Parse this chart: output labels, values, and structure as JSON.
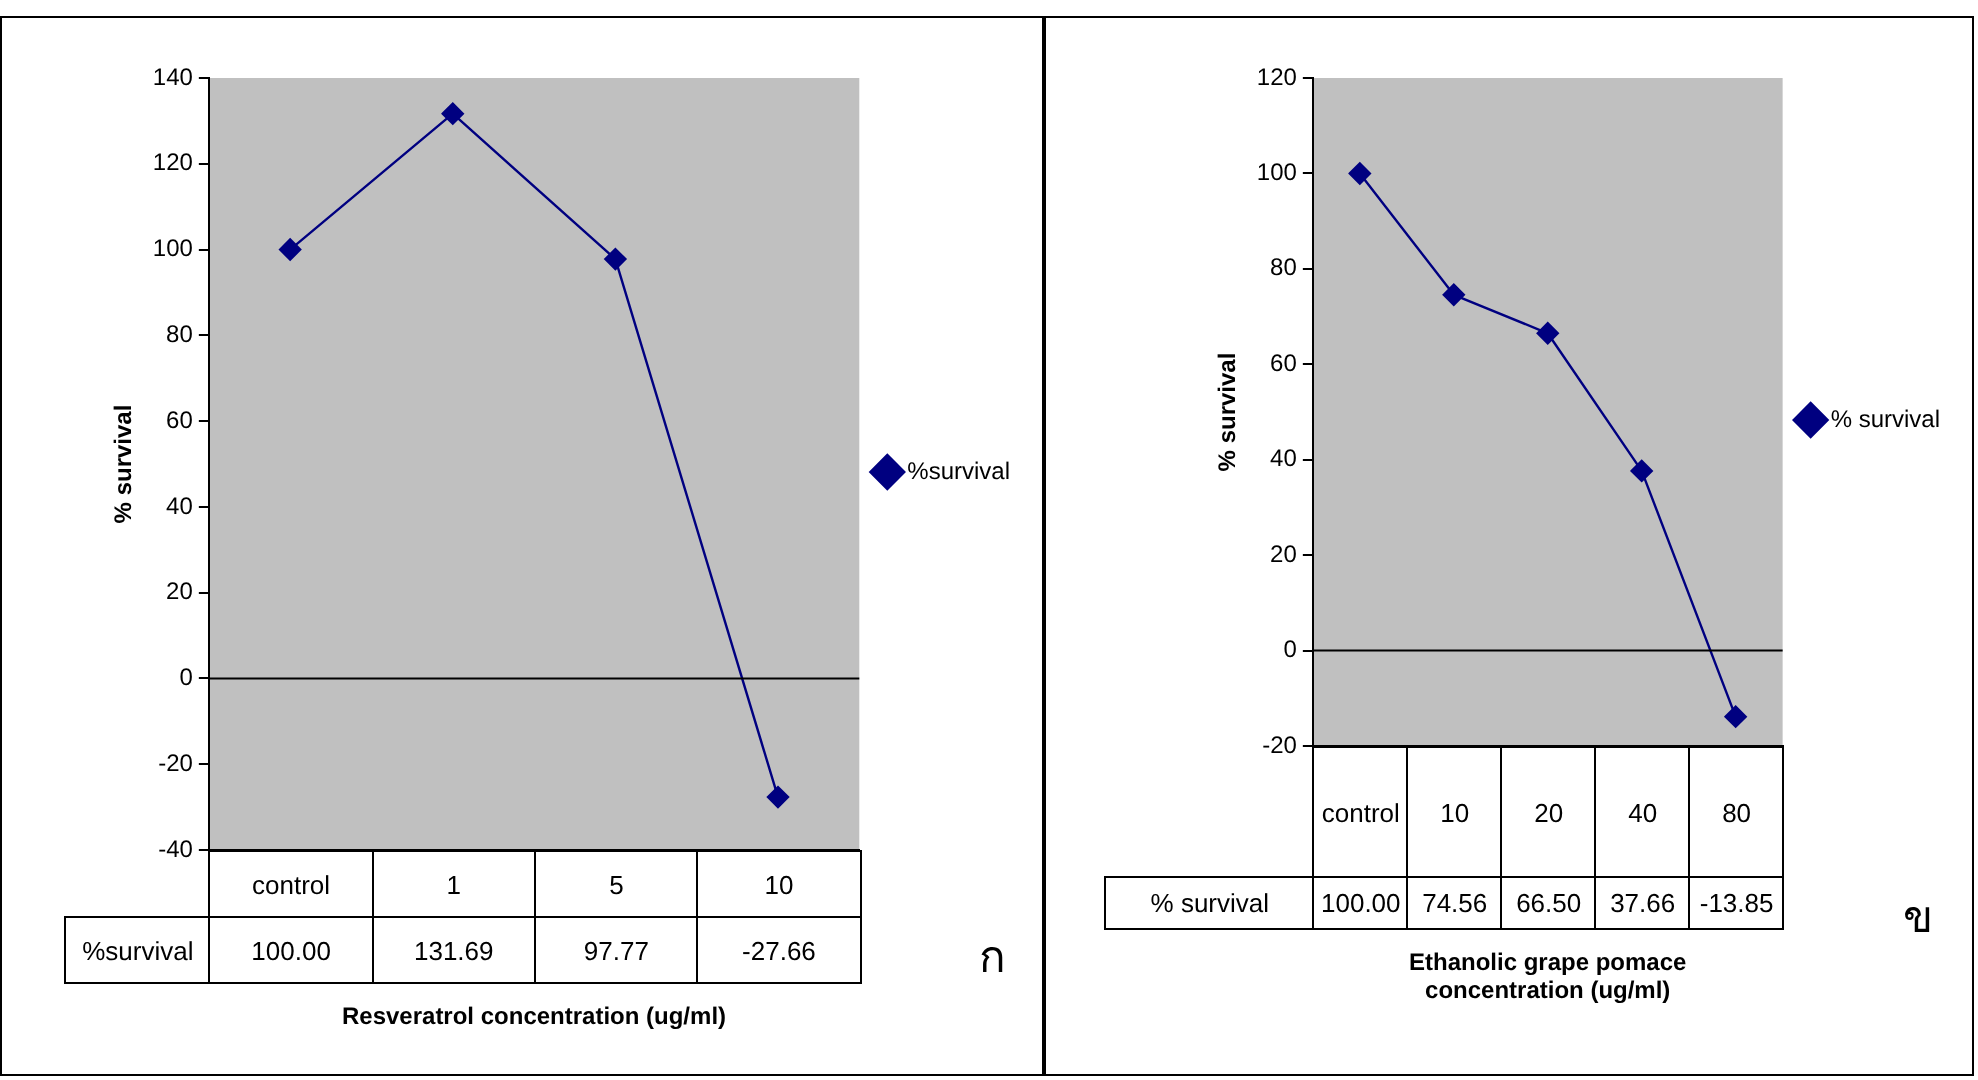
{
  "chart_data": [
    {
      "type": "line",
      "xlabel": "Resveratrol concentration (ug/ml)",
      "ylabel": "% survival",
      "categories": [
        "control",
        "1",
        "5",
        "10"
      ],
      "series": [
        {
          "name": "%survival",
          "color": "#000080",
          "values": [
            100,
            131.69,
            97.77,
            -27.66
          ],
          "value_labels": [
            "100.00",
            "131.69",
            "97.77",
            "-27.66"
          ]
        }
      ],
      "ylim": [
        -40,
        140
      ],
      "yticks": [
        -40,
        -20,
        0,
        20,
        40,
        60,
        80,
        100,
        120,
        140
      ],
      "grid": false,
      "legend": "right",
      "marker": "diamond",
      "line_style": "solid",
      "ref_lines": [
        {
          "axis": "y",
          "value": 0,
          "color": "#000000"
        }
      ],
      "annotations": [
        "ก"
      ]
    },
    {
      "type": "line",
      "xlabel": "Ethanolic grape pomace concentration (ug/ml)",
      "ylabel": "% survival",
      "categories": [
        "control",
        "10",
        "20",
        "40",
        "80"
      ],
      "series": [
        {
          "name": "% survival",
          "color": "#000080",
          "values": [
            100,
            74.56,
            66.5,
            37.66,
            -13.85
          ],
          "value_labels": [
            "100.00",
            "74.56",
            "66.50",
            "37.66",
            "-13.85"
          ]
        }
      ],
      "ylim": [
        -20,
        120
      ],
      "yticks": [
        -20,
        0,
        20,
        40,
        60,
        80,
        100,
        120
      ],
      "grid": false,
      "legend": "right",
      "marker": "diamond",
      "line_style": "solid",
      "ref_lines": [
        {
          "axis": "y",
          "value": 0,
          "color": "#000000"
        }
      ],
      "annotations": [
        "ข"
      ]
    }
  ]
}
